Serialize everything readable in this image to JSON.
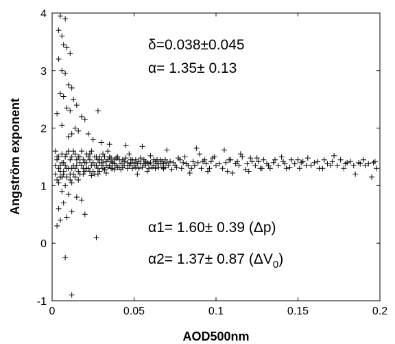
{
  "chart_data": {
    "type": "scatter",
    "xlabel": "AOD500nm",
    "ylabel": "Angström exponent",
    "xlim": [
      0,
      0.2
    ],
    "ylim": [
      -1,
      4
    ],
    "grid": false,
    "x_ticks": [
      0,
      0.05,
      0.1,
      0.15,
      0.2
    ],
    "x_tick_labels": [
      "0",
      "0.05",
      "0.1",
      "0.15",
      "0.2"
    ],
    "y_ticks": [
      -1,
      0,
      1,
      2,
      3,
      4
    ],
    "y_tick_labels": [
      "-1",
      "0",
      "1",
      "2",
      "3",
      "4"
    ],
    "marker": "+",
    "color": "#000000",
    "annotations": {
      "delta_line": "δ=0.038±0.045",
      "alpha_line": "α= 1.35± 0.13",
      "alpha1_main": "α1= 1.60± 0.39 (Δp)",
      "alpha2_main": "α2= 1.37± 0.87 (ΔV",
      "alpha2_sub": "0",
      "alpha2_close": ")"
    },
    "points": [
      [
        0.005,
        3.95
      ],
      [
        0.008,
        3.9
      ],
      [
        0.004,
        3.7
      ],
      [
        0.006,
        3.6
      ],
      [
        0.007,
        3.45
      ],
      [
        0.009,
        3.4
      ],
      [
        0.011,
        3.3
      ],
      [
        0.004,
        3.2
      ],
      [
        0.006,
        3.0
      ],
      [
        0.008,
        2.95
      ],
      [
        0.01,
        2.75
      ],
      [
        0.012,
        2.7
      ],
      [
        0.005,
        2.6
      ],
      [
        0.007,
        2.55
      ],
      [
        0.013,
        2.5
      ],
      [
        0.015,
        2.4
      ],
      [
        0.009,
        2.35
      ],
      [
        0.011,
        2.3
      ],
      [
        0.003,
        2.25
      ],
      [
        0.018,
        2.2
      ],
      [
        0.02,
        2.15
      ],
      [
        0.028,
        2.3
      ],
      [
        0.006,
        2.05
      ],
      [
        0.014,
        2.0
      ],
      [
        0.016,
        1.95
      ],
      [
        0.022,
        1.9
      ],
      [
        0.01,
        1.85
      ],
      [
        0.012,
        1.9
      ],
      [
        0.025,
        1.8
      ],
      [
        0.03,
        1.75
      ],
      [
        0.035,
        1.72
      ],
      [
        0.045,
        1.7
      ],
      [
        0.055,
        1.68
      ],
      [
        0.07,
        1.62
      ],
      [
        0.088,
        1.65
      ],
      [
        0.09,
        1.55
      ],
      [
        0.105,
        1.62
      ],
      [
        0.115,
        1.55
      ],
      [
        0.125,
        1.48
      ],
      [
        0.14,
        1.5
      ],
      [
        0.15,
        1.45
      ],
      [
        0.155,
        1.35
      ],
      [
        0.172,
        1.52
      ],
      [
        0.18,
        1.4
      ],
      [
        0.19,
        1.45
      ],
      [
        0.197,
        1.42
      ],
      [
        0.185,
        1.2
      ],
      [
        0.195,
        1.15
      ],
      [
        0.165,
        1.3
      ],
      [
        0.145,
        1.32
      ],
      [
        0.135,
        1.4
      ],
      [
        0.128,
        1.3
      ],
      [
        0.118,
        1.28
      ],
      [
        0.11,
        1.22
      ],
      [
        0.1,
        1.35
      ],
      [
        0.095,
        1.25
      ],
      [
        0.085,
        1.3
      ],
      [
        0.08,
        1.4
      ],
      [
        0.075,
        1.35
      ],
      [
        0.068,
        1.3
      ],
      [
        0.062,
        1.45
      ],
      [
        0.058,
        1.25
      ],
      [
        0.052,
        1.2
      ],
      [
        0.048,
        1.38
      ],
      [
        0.042,
        1.28
      ],
      [
        0.038,
        1.45
      ],
      [
        0.033,
        1.22
      ],
      [
        0.028,
        1.3
      ],
      [
        0.024,
        1.18
      ],
      [
        0.02,
        1.4
      ],
      [
        0.016,
        1.1
      ],
      [
        0.012,
        1.05
      ],
      [
        0.008,
        1.0
      ],
      [
        0.006,
        0.9
      ],
      [
        0.01,
        0.85
      ],
      [
        0.015,
        0.8
      ],
      [
        0.018,
        0.75
      ],
      [
        0.007,
        0.7
      ],
      [
        0.004,
        0.6
      ],
      [
        0.012,
        0.55
      ],
      [
        0.02,
        0.5
      ],
      [
        0.009,
        0.45
      ],
      [
        0.005,
        0.4
      ],
      [
        0.003,
        0.3
      ],
      [
        0.008,
        -0.25
      ],
      [
        0.027,
        0.1
      ],
      [
        0.012,
        -0.9
      ],
      [
        0.002,
        1.6
      ],
      [
        0.004,
        1.5
      ],
      [
        0.006,
        1.55
      ],
      [
        0.003,
        1.45
      ],
      [
        0.005,
        1.35
      ],
      [
        0.007,
        1.25
      ],
      [
        0.009,
        1.15
      ],
      [
        0.011,
        1.45
      ],
      [
        0.013,
        1.35
      ],
      [
        0.014,
        1.55
      ],
      [
        0.017,
        1.5
      ],
      [
        0.019,
        1.3
      ],
      [
        0.021,
        1.55
      ],
      [
        0.023,
        1.45
      ],
      [
        0.026,
        1.35
      ],
      [
        0.029,
        1.5
      ],
      [
        0.031,
        1.4
      ],
      [
        0.034,
        1.6
      ],
      [
        0.036,
        1.3
      ],
      [
        0.04,
        1.5
      ],
      [
        0.044,
        1.42
      ],
      [
        0.047,
        1.55
      ],
      [
        0.05,
        1.4
      ],
      [
        0.054,
        1.48
      ],
      [
        0.057,
        1.35
      ],
      [
        0.06,
        1.52
      ],
      [
        0.064,
        1.38
      ],
      [
        0.066,
        1.45
      ],
      [
        0.072,
        1.42
      ],
      [
        0.077,
        1.48
      ],
      [
        0.082,
        1.38
      ],
      [
        0.092,
        1.42
      ],
      [
        0.098,
        1.48
      ],
      [
        0.108,
        1.45
      ],
      [
        0.112,
        1.38
      ],
      [
        0.122,
        1.42
      ],
      [
        0.132,
        1.35
      ],
      [
        0.142,
        1.38
      ],
      [
        0.152,
        1.4
      ],
      [
        0.162,
        1.42
      ],
      [
        0.17,
        1.35
      ],
      [
        0.178,
        1.3
      ],
      [
        0.188,
        1.38
      ],
      [
        0.002,
        1.2
      ],
      [
        0.003,
        1.1
      ],
      [
        0.004,
        1.3
      ],
      [
        0.005,
        1.15
      ],
      [
        0.006,
        1.4
      ],
      [
        0.007,
        1.2
      ],
      [
        0.008,
        1.5
      ],
      [
        0.009,
        1.3
      ],
      [
        0.01,
        1.6
      ],
      [
        0.011,
        1.2
      ],
      [
        0.012,
        1.5
      ],
      [
        0.013,
        1.2
      ],
      [
        0.014,
        1.3
      ],
      [
        0.015,
        1.45
      ],
      [
        0.016,
        1.25
      ],
      [
        0.017,
        1.4
      ],
      [
        0.018,
        1.6
      ],
      [
        0.019,
        1.2
      ],
      [
        0.021,
        1.3
      ],
      [
        0.022,
        1.5
      ],
      [
        0.023,
        1.25
      ],
      [
        0.024,
        1.6
      ],
      [
        0.025,
        1.4
      ],
      [
        0.026,
        1.2
      ],
      [
        0.027,
        1.5
      ],
      [
        0.028,
        1.45
      ],
      [
        0.029,
        1.25
      ],
      [
        0.03,
        1.35
      ],
      [
        0.031,
        1.55
      ],
      [
        0.032,
        1.28
      ],
      [
        0.033,
        1.42
      ],
      [
        0.034,
        1.32
      ],
      [
        0.035,
        1.5
      ],
      [
        0.036,
        1.42
      ],
      [
        0.037,
        1.3
      ],
      [
        0.038,
        1.38
      ],
      [
        0.039,
        1.48
      ],
      [
        0.041,
        1.32
      ],
      [
        0.043,
        1.45
      ],
      [
        0.046,
        1.3
      ],
      [
        0.049,
        1.45
      ],
      [
        0.051,
        1.32
      ],
      [
        0.053,
        1.42
      ],
      [
        0.056,
        1.45
      ],
      [
        0.059,
        1.38
      ],
      [
        0.061,
        1.32
      ],
      [
        0.063,
        1.42
      ],
      [
        0.065,
        1.38
      ],
      [
        0.067,
        1.32
      ],
      [
        0.069,
        1.45
      ],
      [
        0.071,
        1.35
      ],
      [
        0.073,
        1.28
      ],
      [
        0.074,
        1.4
      ],
      [
        0.076,
        1.32
      ],
      [
        0.078,
        1.45
      ],
      [
        0.079,
        1.3
      ],
      [
        0.081,
        1.5
      ],
      [
        0.083,
        1.35
      ],
      [
        0.084,
        1.22
      ],
      [
        0.086,
        1.42
      ],
      [
        0.087,
        1.35
      ],
      [
        0.089,
        1.4
      ],
      [
        0.091,
        1.3
      ],
      [
        0.093,
        1.45
      ],
      [
        0.094,
        1.38
      ],
      [
        0.096,
        1.3
      ],
      [
        0.097,
        1.42
      ],
      [
        0.099,
        1.5
      ],
      [
        0.102,
        1.38
      ],
      [
        0.104,
        1.3
      ],
      [
        0.106,
        1.4
      ],
      [
        0.107,
        1.25
      ],
      [
        0.109,
        1.45
      ],
      [
        0.113,
        1.42
      ],
      [
        0.114,
        1.35
      ],
      [
        0.116,
        1.5
      ],
      [
        0.119,
        1.38
      ],
      [
        0.12,
        1.25
      ],
      [
        0.121,
        1.48
      ],
      [
        0.124,
        1.35
      ],
      [
        0.126,
        1.42
      ],
      [
        0.127,
        1.3
      ],
      [
        0.129,
        1.45
      ],
      [
        0.131,
        1.38
      ],
      [
        0.133,
        1.3
      ],
      [
        0.136,
        1.45
      ],
      [
        0.138,
        1.35
      ],
      [
        0.141,
        1.42
      ],
      [
        0.143,
        1.3
      ],
      [
        0.146,
        1.45
      ],
      [
        0.148,
        1.38
      ],
      [
        0.151,
        1.3
      ],
      [
        0.153,
        1.42
      ],
      [
        0.156,
        1.48
      ],
      [
        0.158,
        1.35
      ],
      [
        0.16,
        1.4
      ],
      [
        0.163,
        1.3
      ],
      [
        0.166,
        1.45
      ],
      [
        0.168,
        1.38
      ],
      [
        0.171,
        1.42
      ],
      [
        0.174,
        1.35
      ],
      [
        0.176,
        1.45
      ],
      [
        0.179,
        1.38
      ],
      [
        0.182,
        1.42
      ],
      [
        0.184,
        1.35
      ],
      [
        0.187,
        1.4
      ],
      [
        0.191,
        1.35
      ],
      [
        0.193,
        1.38
      ],
      [
        0.196,
        1.4
      ],
      [
        0.198,
        1.3
      ],
      [
        0.002,
        1.35
      ],
      [
        0.003,
        1.5
      ],
      [
        0.004,
        1.05
      ],
      [
        0.005,
        1.25
      ],
      [
        0.006,
        1.15
      ],
      [
        0.007,
        1.4
      ],
      [
        0.008,
        1.35
      ],
      [
        0.009,
        1.55
      ],
      [
        0.01,
        1.3
      ],
      [
        0.011,
        1.1
      ],
      [
        0.012,
        1.3
      ],
      [
        0.013,
        1.6
      ],
      [
        0.014,
        1.15
      ],
      [
        0.015,
        1.35
      ],
      [
        0.016,
        1.5
      ],
      [
        0.017,
        1.2
      ],
      [
        0.018,
        1.35
      ],
      [
        0.019,
        1.45
      ],
      [
        0.02,
        1.25
      ],
      [
        0.021,
        1.4
      ],
      [
        0.022,
        1.3
      ],
      [
        0.023,
        1.55
      ],
      [
        0.024,
        1.35
      ],
      [
        0.025,
        1.25
      ],
      [
        0.026,
        1.5
      ],
      [
        0.027,
        1.35
      ],
      [
        0.028,
        1.2
      ],
      [
        0.029,
        1.4
      ],
      [
        0.03,
        1.45
      ],
      [
        0.031,
        1.3
      ],
      [
        0.032,
        1.5
      ],
      [
        0.033,
        1.35
      ],
      [
        0.034,
        1.45
      ],
      [
        0.035,
        1.35
      ],
      [
        0.036,
        1.48
      ],
      [
        0.037,
        1.4
      ],
      [
        0.038,
        1.28
      ],
      [
        0.039,
        1.35
      ],
      [
        0.04,
        1.32
      ],
      [
        0.041,
        1.45
      ],
      [
        0.042,
        1.38
      ],
      [
        0.043,
        1.32
      ],
      [
        0.044,
        1.35
      ],
      [
        0.045,
        1.48
      ],
      [
        0.046,
        1.4
      ],
      [
        0.047,
        1.35
      ],
      [
        0.048,
        1.45
      ],
      [
        0.049,
        1.3
      ],
      [
        0.05,
        1.35
      ],
      [
        0.051,
        1.45
      ],
      [
        0.052,
        1.38
      ],
      [
        0.053,
        1.3
      ],
      [
        0.054,
        1.38
      ],
      [
        0.055,
        1.32
      ],
      [
        0.056,
        1.38
      ],
      [
        0.057,
        1.42
      ],
      [
        0.058,
        1.4
      ],
      [
        0.059,
        1.3
      ],
      [
        0.06,
        1.4
      ],
      [
        0.062,
        1.35
      ],
      [
        0.063,
        1.3
      ],
      [
        0.064,
        1.45
      ],
      [
        0.065,
        1.32
      ],
      [
        0.066,
        1.38
      ],
      [
        0.067,
        1.42
      ],
      [
        0.068,
        1.38
      ],
      [
        0.069,
        1.32
      ],
      [
        0.07,
        1.4
      ]
    ]
  }
}
